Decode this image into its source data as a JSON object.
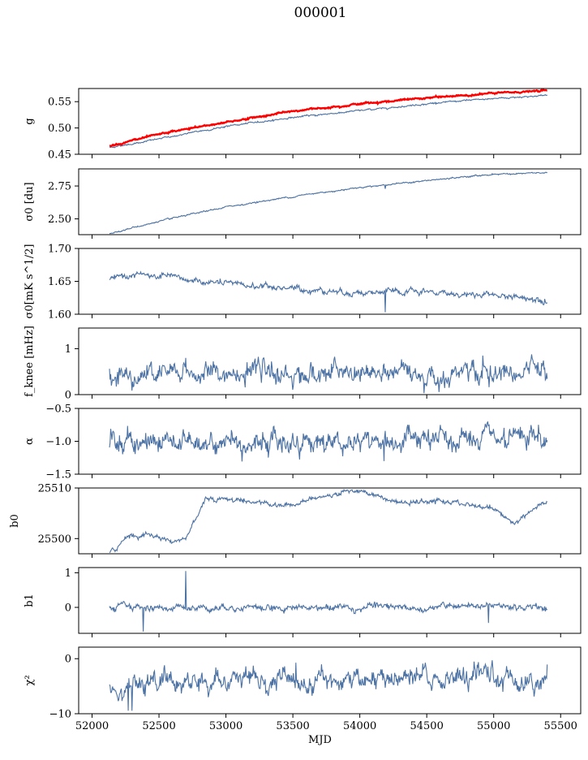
{
  "figure": {
    "title": "000001",
    "xlabel": "MJD",
    "xlim": [
      51900,
      55650
    ],
    "xticks": [
      52000,
      52500,
      53000,
      53500,
      54000,
      54500,
      55000,
      55500
    ],
    "xtick_labels": [
      "52000",
      "52500",
      "53000",
      "53500",
      "54000",
      "54500",
      "55000",
      "55500"
    ],
    "data_x_range": [
      52130,
      55400
    ],
    "colors": {
      "series": "#4c72a4",
      "fit": "#ff0000",
      "axes": "#000000"
    }
  },
  "chart_data": [
    {
      "type": "line",
      "ylabel": "g",
      "ylim": [
        0.45,
        0.575
      ],
      "yticks": [
        0.45,
        0.5,
        0.55
      ],
      "ytick_labels": [
        "0.45",
        "0.50",
        "0.55"
      ],
      "series": [
        {
          "color": "#4c72a4",
          "x": [
            52130,
            52300,
            52600,
            53000,
            53500,
            54000,
            54500,
            55000,
            55400
          ],
          "y": [
            0.463,
            0.47,
            0.484,
            0.503,
            0.52,
            0.533,
            0.546,
            0.556,
            0.562
          ]
        },
        {
          "color": "#ff0000",
          "x": [
            52130,
            52300,
            52600,
            53000,
            53500,
            54000,
            54500,
            55000,
            55400
          ],
          "y": [
            0.466,
            0.476,
            0.493,
            0.511,
            0.532,
            0.546,
            0.557,
            0.566,
            0.571
          ]
        }
      ]
    },
    {
      "type": "line",
      "ylabel": "σ0 [du]",
      "ylim": [
        2.38,
        2.88
      ],
      "yticks": [
        2.5,
        2.75
      ],
      "ytick_labels": [
        "2.50",
        "2.75"
      ],
      "series": [
        {
          "color": "#4c72a4",
          "x": [
            52130,
            52500,
            53000,
            53500,
            54000,
            54500,
            55000,
            55400
          ],
          "y": [
            2.39,
            2.48,
            2.59,
            2.67,
            2.74,
            2.79,
            2.84,
            2.85
          ]
        }
      ]
    },
    {
      "type": "line",
      "ylabel": "σ0[mK s^1/2]",
      "ylim": [
        1.6,
        1.7
      ],
      "yticks": [
        1.6,
        1.65,
        1.7
      ],
      "ytick_labels": [
        "1.60",
        "1.65",
        "1.70"
      ],
      "series": [
        {
          "color": "#4c72a4",
          "x": [
            52130,
            52300,
            52700,
            53000,
            53500,
            54000,
            54500,
            55000,
            55400
          ],
          "y": [
            1.652,
            1.661,
            1.652,
            1.646,
            1.639,
            1.633,
            1.633,
            1.629,
            1.622
          ]
        }
      ]
    },
    {
      "type": "line",
      "ylabel": "f_knee [mHz]",
      "ylim": [
        0,
        1.45
      ],
      "yticks": [
        0,
        1
      ],
      "ytick_labels": [
        "0",
        "1"
      ],
      "series": [
        {
          "color": "#4c72a4",
          "x": [
            52130,
            55400
          ],
          "y": [
            0.45,
            0.45
          ]
        }
      ]
    },
    {
      "type": "line",
      "ylabel": "α",
      "ylim": [
        -1.5,
        -0.5
      ],
      "yticks": [
        -1.5,
        -1.0,
        -0.5
      ],
      "ytick_labels": [
        "−1.5",
        "−1.0",
        "−0.5"
      ],
      "series": [
        {
          "color": "#4c72a4",
          "x": [
            52130,
            55400
          ],
          "y": [
            -1.0,
            -1.0
          ]
        }
      ]
    },
    {
      "type": "line",
      "ylabel": "b0",
      "ylim": [
        25497,
        25510
      ],
      "yticks": [
        25500,
        25510
      ],
      "ytick_labels": [
        "25500",
        "25510"
      ],
      "series": [
        {
          "color": "#4c72a4",
          "x": [
            52130,
            52170,
            52250,
            52450,
            52600,
            52700,
            52750,
            52850,
            53100,
            53450,
            53700,
            53950,
            54300,
            54600,
            55000,
            55150,
            55250,
            55400
          ],
          "y": [
            25497.3,
            25497.5,
            25500.5,
            25500.8,
            25499.4,
            25500.0,
            25503.0,
            25508.0,
            25507.6,
            25506.6,
            25508.1,
            25509.8,
            25507.0,
            25507.4,
            25506.0,
            25503.0,
            25505.0,
            25507.2
          ]
        }
      ]
    },
    {
      "type": "line",
      "ylabel": "b1",
      "ylim": [
        -0.75,
        1.15
      ],
      "yticks": [
        0,
        1
      ],
      "ytick_labels": [
        "0",
        "1"
      ],
      "series": [
        {
          "color": "#4c72a4",
          "x": [
            52130,
            55400
          ],
          "y": [
            0.0,
            0.0
          ]
        }
      ]
    },
    {
      "type": "line",
      "ylabel": "χ²",
      "ylim": [
        -10,
        2.1
      ],
      "yticks": [
        -10,
        0
      ],
      "ytick_labels": [
        "−10",
        "0"
      ],
      "series": [
        {
          "color": "#4c72a4",
          "x": [
            52130,
            55400
          ],
          "y": [
            -4.5,
            -3.5
          ]
        }
      ]
    }
  ]
}
